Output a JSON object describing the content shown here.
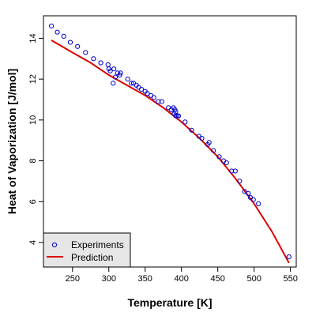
{
  "chart_data": {
    "type": "scatter",
    "title": "",
    "xlabel": "Temperature [K]",
    "ylabel": "Heat of Vaporization [J/mol]",
    "xlim": [
      210,
      558
    ],
    "ylim": [
      2.8,
      15.1
    ],
    "xticks": [
      250,
      300,
      350,
      400,
      450,
      500,
      550
    ],
    "yticks": [
      4,
      6,
      8,
      10,
      12,
      14
    ],
    "grid": false,
    "legend_position": "bottom-left",
    "series": [
      {
        "name": "Experiments",
        "kind": "points",
        "marker": "open-circle",
        "color": "#0000CC",
        "x": [
          221,
          229,
          238,
          247,
          257,
          268,
          279,
          289,
          299,
          300,
          302,
          306,
          307,
          309,
          312,
          315,
          316,
          326,
          331,
          334,
          338,
          341,
          345,
          350,
          353,
          358,
          362,
          368,
          373,
          382,
          386,
          389,
          390,
          391,
          392,
          392,
          394,
          396,
          405,
          414,
          424,
          428,
          436,
          438,
          444,
          452,
          458,
          462,
          469,
          474,
          480,
          487,
          492,
          495,
          499,
          506,
          548
        ],
        "y": [
          14.6,
          14.3,
          14.1,
          13.8,
          13.6,
          13.3,
          13.0,
          12.8,
          12.7,
          12.5,
          12.4,
          11.8,
          12.5,
          12.1,
          12.3,
          12.2,
          12.3,
          12.0,
          11.8,
          11.8,
          11.7,
          11.6,
          11.5,
          11.4,
          11.3,
          11.2,
          11.1,
          10.9,
          10.9,
          10.6,
          10.5,
          10.6,
          10.3,
          10.5,
          10.2,
          10.4,
          10.2,
          10.2,
          9.9,
          9.5,
          9.2,
          9.1,
          8.8,
          8.9,
          8.5,
          8.2,
          8.0,
          7.9,
          7.5,
          7.5,
          7.0,
          6.5,
          6.4,
          6.2,
          6.1,
          5.9,
          3.3
        ]
      },
      {
        "name": "Prediction",
        "kind": "line",
        "color": "#DD0000",
        "x": [
          221,
          250,
          275,
          300,
          325,
          350,
          375,
          400,
          425,
          450,
          475,
          500,
          525,
          548
        ],
        "y": [
          13.9,
          13.3,
          12.8,
          12.2,
          11.7,
          11.2,
          10.6,
          9.9,
          9.1,
          8.2,
          7.1,
          5.9,
          4.5,
          3.0
        ]
      }
    ]
  }
}
